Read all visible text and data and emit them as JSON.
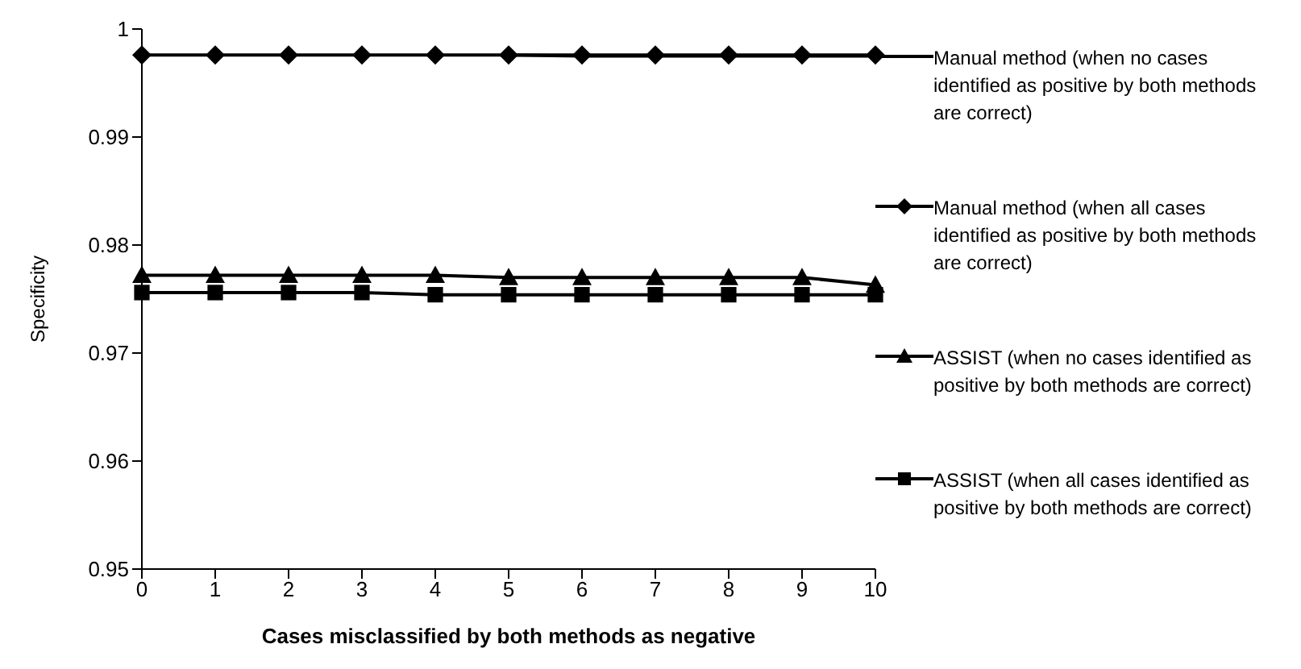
{
  "chart_data": {
    "type": "line",
    "xlabel": "Cases misclassified  by both methods as negative",
    "ylabel": "Specificity",
    "categories": [
      "0",
      "1",
      "2",
      "3",
      "4",
      "5",
      "6",
      "7",
      "8",
      "9",
      "10"
    ],
    "ylim": [
      0.95,
      1
    ],
    "yticks": [
      0.95,
      0.96,
      0.97,
      0.98,
      0.99,
      1
    ],
    "grid": false,
    "legend": "right",
    "line_style": "solid",
    "series": [
      {
        "name": "Manual method (when no cases identified as positive by both methods are correct)",
        "color": "#000000",
        "marker": "none",
        "values": [
          null,
          null,
          null,
          null,
          null,
          0.9976,
          0.9975,
          0.9975,
          0.9975,
          0.9975,
          0.9975
        ]
      },
      {
        "name": "Manual method (when all cases identified as positive by both methods are correct)",
        "color": "#000000",
        "marker": "diamond",
        "values": [
          0.9976,
          0.9976,
          0.9976,
          0.9976,
          0.9976,
          0.9976,
          0.9976,
          0.9976,
          0.9976,
          0.9976,
          0.9976
        ]
      },
      {
        "name": "ASSIST (when no cases identified as positive by both methods are correct)",
        "color": "#000000",
        "marker": "triangle",
        "values": [
          0.9772,
          0.9772,
          0.9772,
          0.9772,
          0.9772,
          0.977,
          0.977,
          0.977,
          0.977,
          0.977,
          0.9763
        ]
      },
      {
        "name": "ASSIST (when all cases identified as positive by both methods are correct)",
        "color": "#000000",
        "marker": "square",
        "values": [
          0.9756,
          0.9756,
          0.9756,
          0.9756,
          0.9754,
          0.9754,
          0.9754,
          0.9754,
          0.9754,
          0.9754,
          0.9754
        ]
      }
    ]
  }
}
